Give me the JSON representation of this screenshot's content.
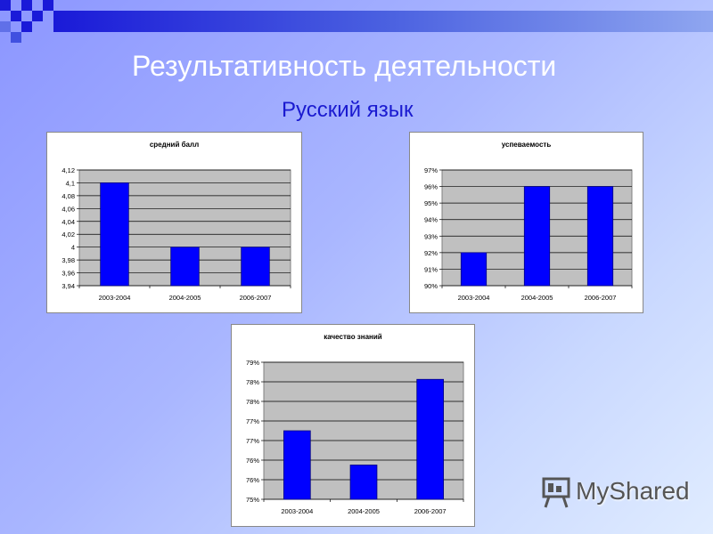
{
  "slide": {
    "title": "Результативность деятельности",
    "subtitle": "Русский язык",
    "logo_text": "MyShared"
  },
  "colors": {
    "bar": "#0000ff",
    "bar_stroke": "#000080",
    "plot_bg": "#c0c0c0",
    "title_color": "#ffffff",
    "subtitle_color": "#1a1ad0"
  },
  "chart_data": [
    {
      "type": "bar",
      "title": "средний балл",
      "categories": [
        "2003-2004",
        "2004-2005",
        "2006-2007"
      ],
      "values": [
        4.1,
        4.0,
        4.0
      ],
      "ylim": [
        3.94,
        4.12
      ],
      "yticks": [
        "4,12",
        "4,1",
        "4,08",
        "4,06",
        "4,04",
        "4,02",
        "4",
        "3,98",
        "3,96",
        "3,94"
      ],
      "grid": true,
      "xlabel": "",
      "ylabel": ""
    },
    {
      "type": "bar",
      "title": "успеваемость",
      "categories": [
        "2003-2004",
        "2004-2005",
        "2006-2007"
      ],
      "values": [
        92,
        96,
        96
      ],
      "ylim": [
        90,
        97
      ],
      "yticks": [
        "97%",
        "96%",
        "95%",
        "94%",
        "93%",
        "92%",
        "91%",
        "90%"
      ],
      "grid": true,
      "xlabel": "",
      "ylabel": ""
    },
    {
      "type": "bar",
      "title": "качество знаний",
      "categories": [
        "2003-2004",
        "2004-2005",
        "2006-2007"
      ],
      "values": [
        77,
        76,
        78.5
      ],
      "ylim": [
        75,
        79
      ],
      "yticks": [
        "79%",
        "78%",
        "78%",
        "77%",
        "77%",
        "76%",
        "76%",
        "75%"
      ],
      "grid": true,
      "xlabel": "",
      "ylabel": ""
    }
  ]
}
